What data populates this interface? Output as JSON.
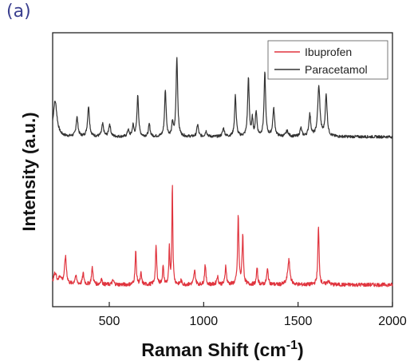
{
  "panel_label": "(a)",
  "chart_data": {
    "type": "line",
    "title": "",
    "xlabel_text": "Raman Shift (cm",
    "xlabel_sup": "-1",
    "xlabel_close": ")",
    "ylabel": "Intensity (a.u.)",
    "xlim": [
      200,
      2000
    ],
    "xticks": [
      500,
      1000,
      1500,
      2000
    ],
    "grid": false,
    "legend_position": "top-right",
    "y_units": "arbitrary (offset traces)",
    "series": [
      {
        "name": "Paracetamol",
        "color": "#333333",
        "baseline": 0.62,
        "noise": 0.005,
        "peaks": [
          {
            "x": 213,
            "h": 0.13,
            "w": 12
          },
          {
            "x": 329,
            "h": 0.07,
            "w": 6
          },
          {
            "x": 390,
            "h": 0.11,
            "w": 6
          },
          {
            "x": 465,
            "h": 0.045,
            "w": 6
          },
          {
            "x": 502,
            "h": 0.045,
            "w": 6
          },
          {
            "x": 600,
            "h": 0.025,
            "w": 5
          },
          {
            "x": 626,
            "h": 0.04,
            "w": 5
          },
          {
            "x": 651,
            "h": 0.15,
            "w": 5
          },
          {
            "x": 712,
            "h": 0.045,
            "w": 5
          },
          {
            "x": 797,
            "h": 0.17,
            "w": 5
          },
          {
            "x": 835,
            "h": 0.05,
            "w": 4
          },
          {
            "x": 858,
            "h": 0.29,
            "w": 5
          },
          {
            "x": 968,
            "h": 0.045,
            "w": 5
          },
          {
            "x": 1013,
            "h": 0.02,
            "w": 6
          },
          {
            "x": 1105,
            "h": 0.03,
            "w": 6
          },
          {
            "x": 1168,
            "h": 0.15,
            "w": 5
          },
          {
            "x": 1237,
            "h": 0.21,
            "w": 5
          },
          {
            "x": 1258,
            "h": 0.06,
            "w": 4
          },
          {
            "x": 1278,
            "h": 0.09,
            "w": 5
          },
          {
            "x": 1324,
            "h": 0.23,
            "w": 5
          },
          {
            "x": 1371,
            "h": 0.1,
            "w": 6
          },
          {
            "x": 1442,
            "h": 0.02,
            "w": 8
          },
          {
            "x": 1515,
            "h": 0.03,
            "w": 6
          },
          {
            "x": 1562,
            "h": 0.08,
            "w": 6
          },
          {
            "x": 1610,
            "h": 0.18,
            "w": 7
          },
          {
            "x": 1649,
            "h": 0.15,
            "w": 6
          }
        ]
      },
      {
        "name": "Ibuprofen",
        "color": "#e0343e",
        "baseline": 0.08,
        "noise": 0.007,
        "peaks": [
          {
            "x": 213,
            "h": 0.04,
            "w": 10
          },
          {
            "x": 240,
            "h": 0.025,
            "w": 8
          },
          {
            "x": 268,
            "h": 0.1,
            "w": 6
          },
          {
            "x": 322,
            "h": 0.03,
            "w": 6
          },
          {
            "x": 362,
            "h": 0.04,
            "w": 5
          },
          {
            "x": 410,
            "h": 0.06,
            "w": 5
          },
          {
            "x": 458,
            "h": 0.02,
            "w": 5
          },
          {
            "x": 520,
            "h": 0.015,
            "w": 6
          },
          {
            "x": 640,
            "h": 0.12,
            "w": 4
          },
          {
            "x": 668,
            "h": 0.04,
            "w": 4
          },
          {
            "x": 748,
            "h": 0.14,
            "w": 4
          },
          {
            "x": 785,
            "h": 0.065,
            "w": 4
          },
          {
            "x": 818,
            "h": 0.13,
            "w": 3
          },
          {
            "x": 834,
            "h": 0.37,
            "w": 3
          },
          {
            "x": 880,
            "h": 0.015,
            "w": 4
          },
          {
            "x": 952,
            "h": 0.05,
            "w": 5
          },
          {
            "x": 1008,
            "h": 0.075,
            "w": 4
          },
          {
            "x": 1073,
            "h": 0.03,
            "w": 5
          },
          {
            "x": 1117,
            "h": 0.07,
            "w": 4
          },
          {
            "x": 1183,
            "h": 0.25,
            "w": 4
          },
          {
            "x": 1207,
            "h": 0.18,
            "w": 4
          },
          {
            "x": 1283,
            "h": 0.06,
            "w": 4
          },
          {
            "x": 1338,
            "h": 0.055,
            "w": 5
          },
          {
            "x": 1451,
            "h": 0.09,
            "w": 7
          },
          {
            "x": 1608,
            "h": 0.21,
            "w": 4
          },
          {
            "x": 1660,
            "h": 0.015,
            "w": 6
          }
        ]
      }
    ]
  }
}
